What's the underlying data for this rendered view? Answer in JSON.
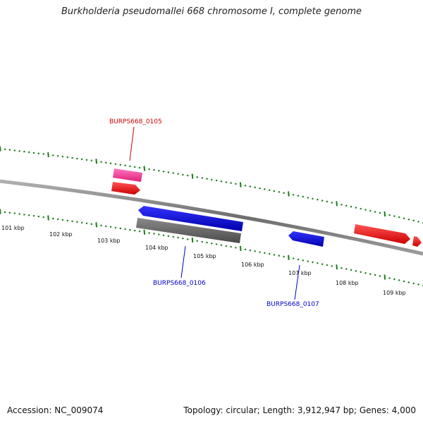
{
  "title": "Burkholderia pseudomallei 668 chromosome I, complete genome",
  "footer": {
    "accession": "Accession: NC_009074",
    "summary": "Topology: circular; Length: 3,912,947 bp; Genes: 4,000"
  },
  "colors": {
    "backbone": "#7f7f7f",
    "tick": "#1a7a1a",
    "gene_forward": "#ff0000",
    "gene_reverse": "#0000ff",
    "feature_pink": "#ff3399",
    "feature_gray": "#666666",
    "label_red": "#cc0000",
    "label_blue": "#0000cc"
  },
  "scale_labels": [
    {
      "text": "101 kbp",
      "kb": 101
    },
    {
      "text": "102 kbp",
      "kb": 102
    },
    {
      "text": "103 kbp",
      "kb": 103
    },
    {
      "text": "104 kbp",
      "kb": 104
    },
    {
      "text": "105 kbp",
      "kb": 105
    },
    {
      "text": "106 kbp",
      "kb": 106
    },
    {
      "text": "107 kbp",
      "kb": 107
    },
    {
      "text": "108 kbp",
      "kb": 108
    },
    {
      "text": "109 kbp",
      "kb": 109
    }
  ],
  "gene_labels": [
    {
      "text": "BURPS668_0105",
      "color": "red"
    },
    {
      "text": "BURPS668_0106",
      "color": "blue"
    },
    {
      "text": "BURPS668_0107",
      "color": "blue"
    }
  ]
}
